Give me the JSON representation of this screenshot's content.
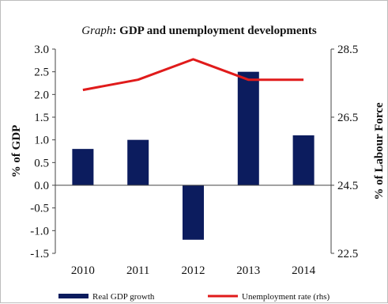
{
  "chart_data": {
    "type": "bar",
    "title_italic": "Graph",
    "title_rest": ": GDP and unemployment developments",
    "categories": [
      "2010",
      "2011",
      "2012",
      "2013",
      "2014"
    ],
    "series": [
      {
        "name": "Real GDP growth",
        "type": "bar",
        "axis": "left",
        "color": "#0c1c5e",
        "values": [
          0.8,
          1.0,
          -1.2,
          2.5,
          1.1
        ]
      },
      {
        "name": "Unemployment rate (rhs)",
        "type": "line",
        "axis": "right",
        "color": "#e01b1b",
        "values": [
          27.3,
          27.6,
          28.2,
          27.6,
          27.6
        ]
      }
    ],
    "ylabel": "% of GDP",
    "y2label": "% of Labour Force",
    "ylim": [
      -1.5,
      3.0
    ],
    "y2lim": [
      22.5,
      28.5
    ],
    "yticks": [
      "3.0",
      "2.5",
      "2.0",
      "1.5",
      "1.0",
      "0.5",
      "0.0",
      "-0.5",
      "-1.0",
      "-1.5"
    ],
    "y2ticks": [
      "28.5",
      "26.5",
      "24.5",
      "22.5"
    ],
    "legend_position": "bottom",
    "grid": false
  }
}
